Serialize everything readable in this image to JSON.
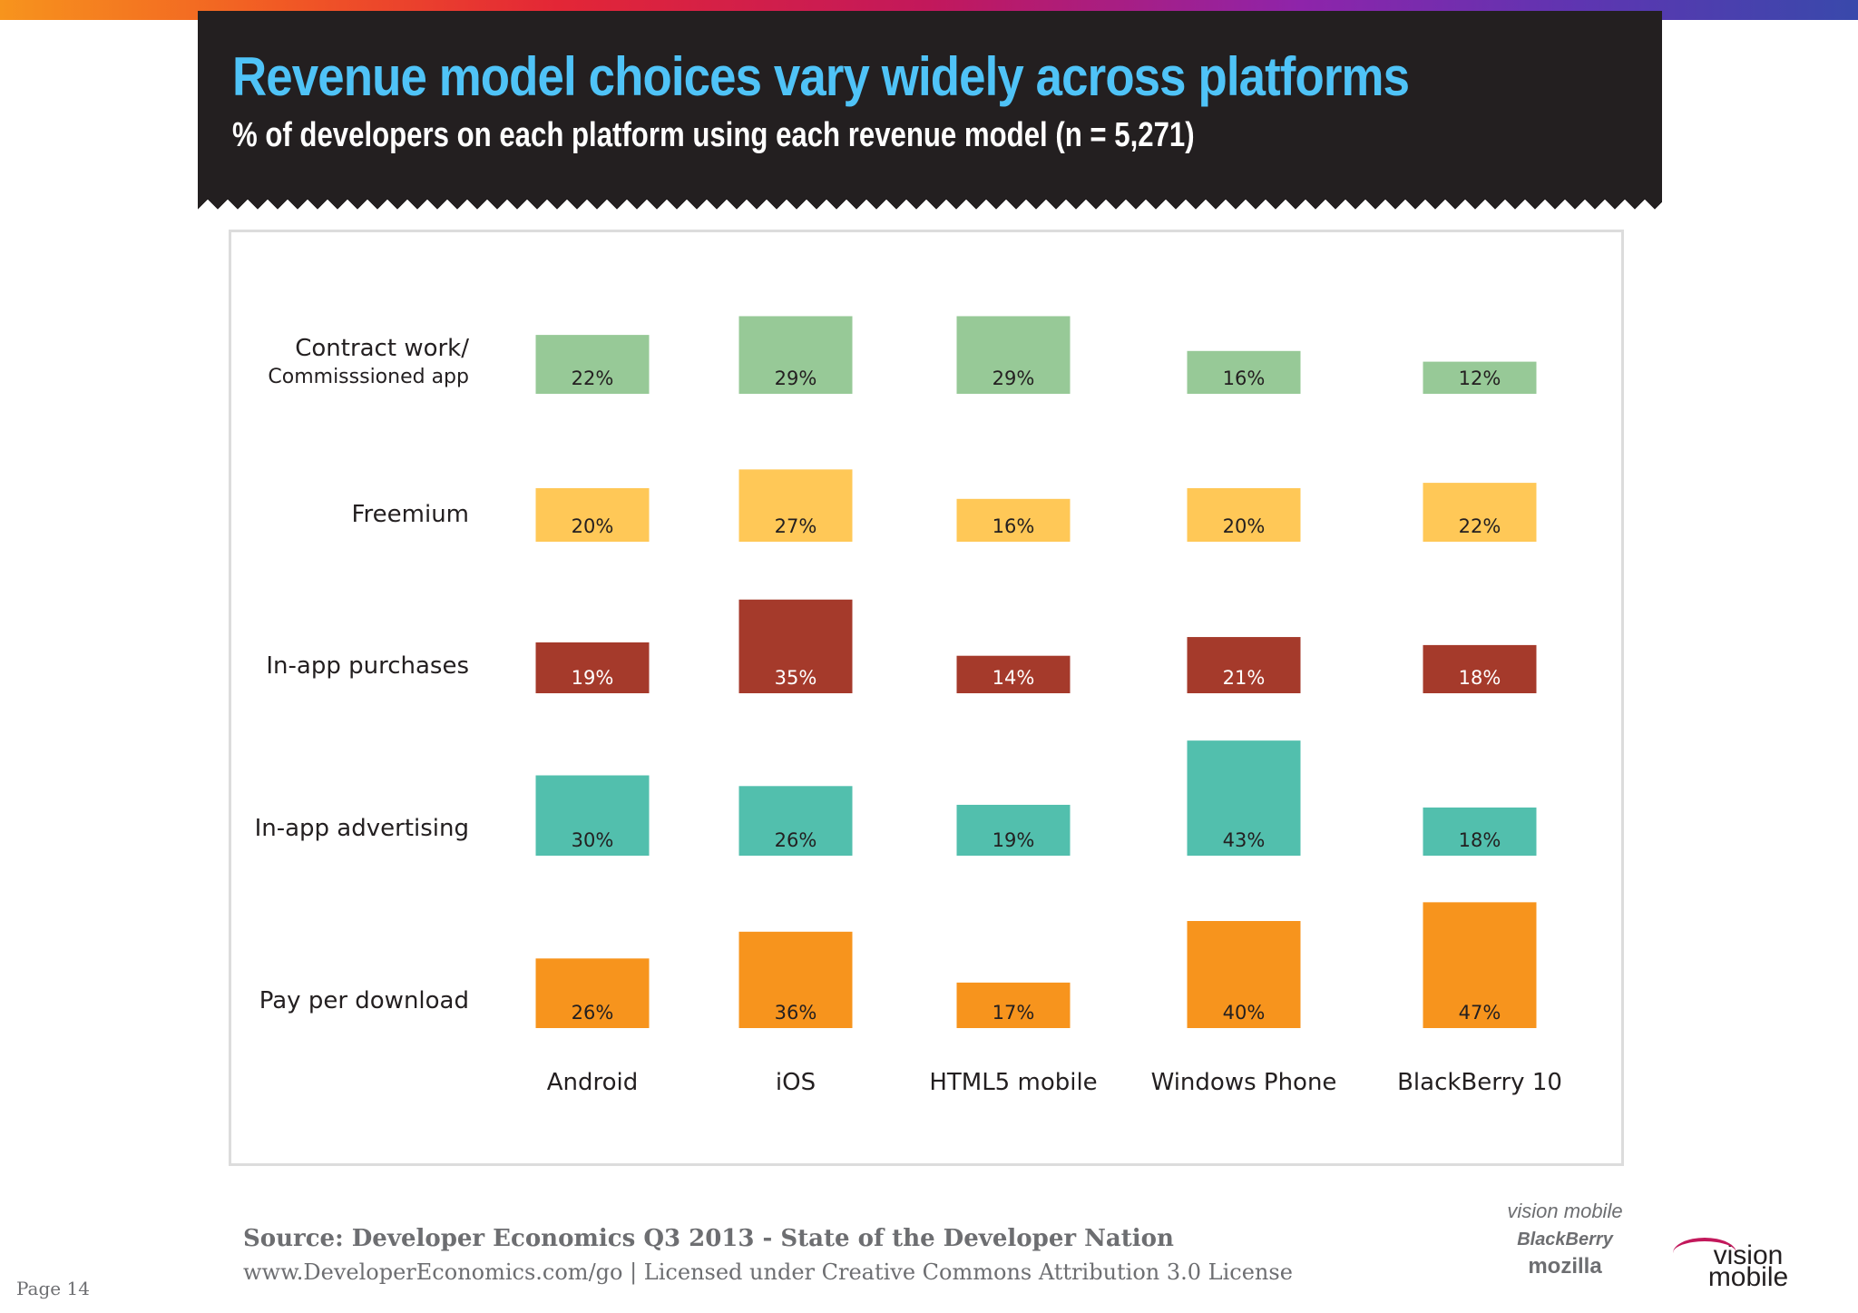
{
  "header": {
    "title": "Revenue model choices vary widely across platforms",
    "subtitle": "% of developers on each platform using each revenue model (n = 5,271)"
  },
  "chart_data": {
    "type": "table",
    "subtype": "bubble-matrix",
    "title": "Revenue model choices vary widely across platforms",
    "subtitle": "% of developers on each platform using each revenue model (n = 5,271)",
    "categories": [
      "Android",
      "iOS",
      "HTML5 mobile",
      "Windows Phone",
      "BlackBerry 10"
    ],
    "rows": [
      "Contract work/",
      "Freemium",
      "In-app purchases",
      "In-app advertising",
      "Pay per download"
    ],
    "row_sublabels": [
      "Commisssioned app",
      "",
      "",
      "",
      ""
    ],
    "series": [
      {
        "name": "Contract work/ Commisssioned app",
        "color": "#97c997",
        "values": [
          22,
          29,
          29,
          16,
          12
        ],
        "labels": [
          "22%",
          "29%",
          "29%",
          "16%",
          "12%"
        ]
      },
      {
        "name": "Freemium",
        "color": "#ffc857",
        "values": [
          20,
          27,
          16,
          20,
          22
        ],
        "labels": [
          "20%",
          "27%",
          "16%",
          "20%",
          "22%"
        ]
      },
      {
        "name": "In-app purchases",
        "color": "#a53a2b",
        "values": [
          19,
          35,
          14,
          21,
          18
        ],
        "labels": [
          "19%",
          "35%",
          "14%",
          "21%",
          "18%"
        ]
      },
      {
        "name": "In-app advertising",
        "color": "#52bfad",
        "values": [
          30,
          26,
          19,
          43,
          18
        ],
        "labels": [
          "30%",
          "26%",
          "19%",
          "43%",
          "18%"
        ]
      },
      {
        "name": "Pay per download",
        "color": "#f7941d",
        "values": [
          26,
          36,
          17,
          40,
          47
        ],
        "labels": [
          "26%",
          "36%",
          "17%",
          "40%",
          "47%"
        ]
      }
    ],
    "xlabel": "",
    "ylabel": ""
  },
  "footer": {
    "source": "Source: Developer Economics Q3 2013 - State of the Developer Nation",
    "license": "www.DeveloperEconomics.com/go | Licensed under Creative Commons Attribution 3.0 License",
    "page": "Page 14"
  },
  "partners": {
    "visionmobile": "vision mobile",
    "blackberry": "BlackBerry",
    "mozilla": "mozilla"
  },
  "brand": "vision mobile"
}
